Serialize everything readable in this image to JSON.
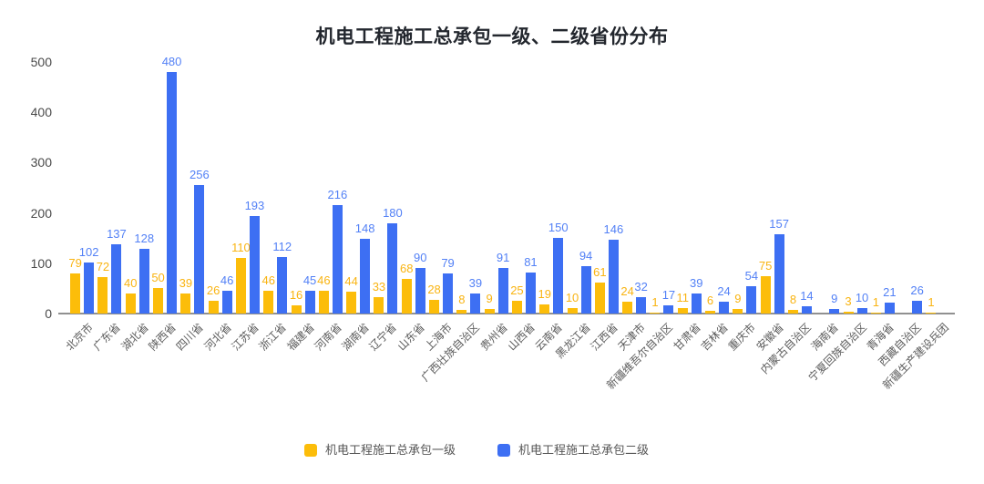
{
  "chart_data": {
    "type": "bar",
    "title": "机电工程施工总承包一级、二级省份分布",
    "categories": [
      "北京市",
      "广东省",
      "湖北省",
      "陕西省",
      "四川省",
      "河北省",
      "江苏省",
      "浙江省",
      "福建省",
      "河南省",
      "湖南省",
      "辽宁省",
      "山东省",
      "上海市",
      "广西壮族自治区",
      "贵州省",
      "山西省",
      "云南省",
      "黑龙江省",
      "江西省",
      "天津市",
      "新疆维吾尔自治区",
      "甘肃省",
      "吉林省",
      "重庆市",
      "安徽省",
      "内蒙古自治区",
      "海南省",
      "宁夏回族自治区",
      "青海省",
      "西藏自治区",
      "新疆生产建设兵团"
    ],
    "series": [
      {
        "name": "机电工程施工总承包一级",
        "color": "#FCBD0A",
        "label_color": "#F9B412",
        "values": [
          79,
          72,
          40,
          50,
          39,
          26,
          110,
          46,
          16,
          46,
          44,
          33,
          68,
          28,
          8,
          9,
          25,
          19,
          10,
          61,
          24,
          1,
          11,
          6,
          9,
          75,
          8,
          null,
          3,
          1,
          null,
          1
        ]
      },
      {
        "name": "机电工程施工总承包二级",
        "color": "#3D6FF3",
        "label_color": "#5381F6",
        "values": [
          102,
          137,
          128,
          480,
          256,
          46,
          193,
          112,
          45,
          216,
          148,
          180,
          90,
          79,
          39,
          91,
          81,
          150,
          94,
          146,
          32,
          17,
          39,
          24,
          54,
          157,
          14,
          9,
          10,
          21,
          26,
          null
        ]
      }
    ],
    "xlabel": "",
    "ylabel": "",
    "ylim": [
      0,
      500
    ],
    "yticks": [
      0,
      100,
      200,
      300,
      400,
      500
    ],
    "grid": false,
    "legend_position": "bottom",
    "show_value_labels": true
  },
  "colors": {
    "background": "#FFFFFF",
    "title_text": "#23272E",
    "y_axis_text": "#4A4A4A",
    "x_axis_text": "#5C5C5C",
    "axis_line": "#909090",
    "legend_text": "#565656"
  }
}
